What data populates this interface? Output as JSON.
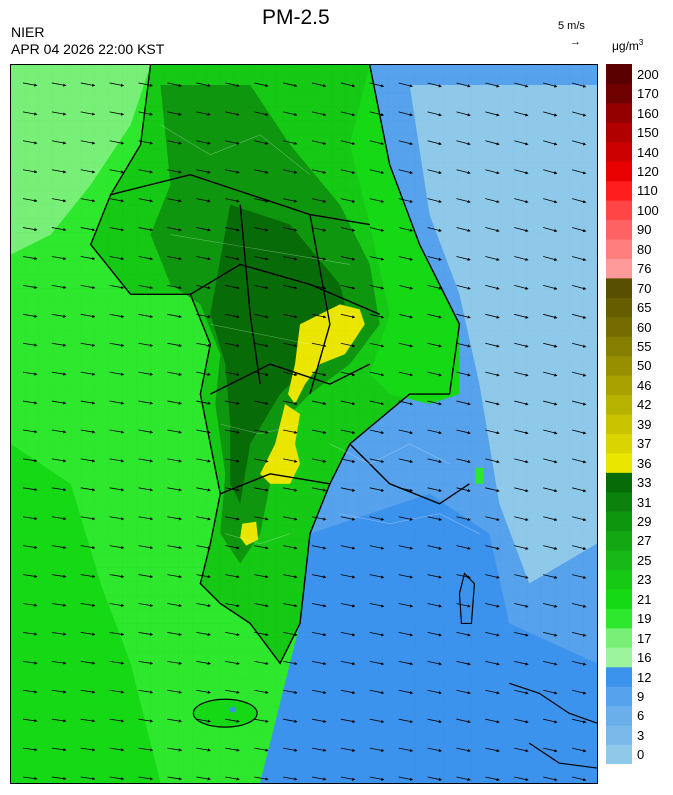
{
  "header": {
    "title": "PM-2.5",
    "agency": "NIER",
    "timestamp": "APR 04 2026 22:00 KST",
    "wind_scale_label": "5 m/s",
    "unit_base": "μg/m",
    "unit_exp": "3"
  },
  "legend": {
    "labels": [
      "0",
      "3",
      "6",
      "9",
      "12",
      "16",
      "17",
      "19",
      "21",
      "23",
      "25",
      "27",
      "29",
      "31",
      "33",
      "36",
      "37",
      "39",
      "42",
      "46",
      "50",
      "55",
      "60",
      "65",
      "70",
      "76",
      "80",
      "90",
      "100",
      "110",
      "120",
      "140",
      "150",
      "160",
      "170",
      "200"
    ],
    "colors": [
      "#8fc9ea",
      "#7ab9ea",
      "#6aaeea",
      "#56a2ec",
      "#3c93ee",
      "#9cf59c",
      "#78f078",
      "#2ee82e",
      "#16d916",
      "#15c915",
      "#17b817",
      "#14a714",
      "#0f960f",
      "#0b820b",
      "#076c07",
      "#ebe600",
      "#dad500",
      "#c9c300",
      "#b7b100",
      "#a8a100",
      "#978f00",
      "#867e00",
      "#756c00",
      "#665d00",
      "#584f00",
      "#ff9a9a",
      "#ff7f7f",
      "#ff6262",
      "#ff4545",
      "#ff1d1d",
      "#e80000",
      "#cc0000",
      "#b00000",
      "#940000",
      "#6f0000",
      "#5a0000"
    ]
  },
  "map": {
    "sea_west_color": "#2ee82e",
    "sea_east_color": "#3c93ee",
    "land_color": "#15c915",
    "hotspot_color": "#ebe600",
    "wind_arrow_color": "#000000",
    "boundary_color": "#000000"
  }
}
